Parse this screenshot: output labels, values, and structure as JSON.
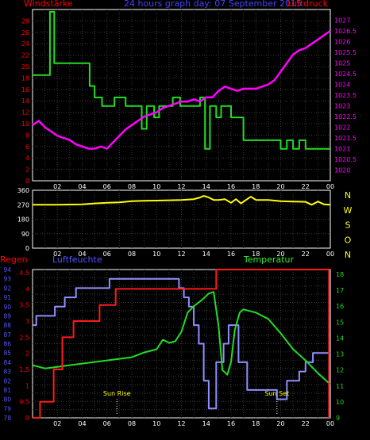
{
  "header": {
    "left": "Windstärke",
    "center": "24 hours graph day: 07 September 2015",
    "right": "Luftdruck"
  },
  "colors": {
    "background": "#000000",
    "frame": "#ffffff",
    "grid": "#3a3a3a",
    "wind": "#22dd22",
    "pressure": "#ff00ff",
    "direction": "#ffff00",
    "rain": "#ff1a1a",
    "humidity": "#8f8fff",
    "temperature": "#22dd22",
    "red_labels": "#ff0000",
    "blue_labels": "#5555ff",
    "yellow_labels": "#ffff00",
    "green_labels": "#33ee33",
    "axis_text": "#ffffff"
  },
  "x_ticks": [
    "02",
    "04",
    "06",
    "08",
    "10",
    "12",
    "14",
    "16",
    "18",
    "20",
    "22",
    "00"
  ],
  "chart_data": [
    {
      "type": "line",
      "title": "24 hours graph day: 07 September 2015",
      "xlim": [
        0,
        24
      ],
      "series": [
        {
          "name": "Windstärke",
          "axis": "left",
          "ylim": [
            0,
            30
          ],
          "yticks": [
            "0",
            "2",
            "4",
            "6",
            "8",
            "10",
            "12",
            "14",
            "16",
            "18",
            "20",
            "22",
            "24",
            "26",
            "28"
          ],
          "step": true,
          "x": [
            0,
            1.4,
            1.4,
            1.75,
            1.75,
            2.5,
            4.6,
            4.6,
            5.0,
            5.0,
            5.6,
            5.6,
            6.6,
            6.6,
            7.5,
            7.5,
            8.0,
            8.0,
            8.8,
            8.8,
            9.2,
            9.2,
            9.8,
            9.8,
            10.2,
            10.2,
            11.3,
            11.3,
            11.9,
            11.9,
            12.8,
            12.8,
            13.5,
            13.5,
            13.9,
            13.9,
            14.3,
            14.3,
            14.8,
            14.8,
            15.2,
            15.2,
            16.0,
            16.0,
            17.0,
            17.0,
            19.0,
            19.0,
            20.0,
            20.0,
            20.5,
            20.5,
            21.0,
            21.0,
            21.5,
            21.5,
            22.0,
            22.0,
            24.0
          ],
          "y": [
            18.5,
            18.5,
            29.6,
            29.6,
            20.6,
            20.6,
            20.6,
            16.6,
            16.6,
            14.6,
            14.6,
            13.1,
            13.1,
            14.6,
            14.6,
            13.1,
            13.1,
            13.1,
            13.1,
            9.1,
            9.1,
            13.1,
            13.1,
            11.1,
            11.1,
            13.1,
            13.1,
            14.6,
            14.6,
            13.1,
            13.1,
            13.1,
            13.1,
            14.6,
            14.6,
            5.6,
            5.6,
            13.1,
            13.1,
            11.1,
            11.1,
            13.1,
            13.1,
            11.1,
            11.1,
            7.1,
            7.1,
            7.1,
            7.1,
            5.6,
            5.6,
            7.1,
            7.1,
            5.6,
            5.6,
            7.1,
            7.1,
            5.6,
            5.6
          ]
        },
        {
          "name": "Luftdruck",
          "axis": "right",
          "ylim": [
            1019.5,
            1027.5
          ],
          "yticks": [
            "1020",
            "1020.5",
            "1021",
            "1021.5",
            "1022",
            "1022.5",
            "1023",
            "1023.5",
            "1024",
            "1024.5",
            "1025",
            "1025.5",
            "1026",
            "1026.5",
            "1027"
          ],
          "x": [
            0,
            0.5,
            1.0,
            1.5,
            2.0,
            2.5,
            3.0,
            3.5,
            4.0,
            4.5,
            5.0,
            5.5,
            6.0,
            6.5,
            7.0,
            7.5,
            8.0,
            8.5,
            9.0,
            9.5,
            10.0,
            10.5,
            11.0,
            11.5,
            12.0,
            12.5,
            13.0,
            13.5,
            14.0,
            14.5,
            15.0,
            15.5,
            16.0,
            16.5,
            17.0,
            17.5,
            18.0,
            18.5,
            19.0,
            19.5,
            20.0,
            20.5,
            21.0,
            21.5,
            22.0,
            22.5,
            23.0,
            23.5,
            24.0
          ],
          "y": [
            1022.1,
            1022.3,
            1022.0,
            1021.8,
            1021.6,
            1021.5,
            1021.4,
            1021.2,
            1021.1,
            1021.0,
            1021.0,
            1021.1,
            1021.0,
            1021.3,
            1021.6,
            1021.9,
            1022.1,
            1022.3,
            1022.5,
            1022.6,
            1022.7,
            1022.9,
            1023.0,
            1023.1,
            1023.2,
            1023.2,
            1023.3,
            1023.2,
            1023.4,
            1023.4,
            1023.7,
            1023.9,
            1023.8,
            1023.7,
            1023.8,
            1023.8,
            1023.8,
            1023.9,
            1024.0,
            1024.2,
            1024.6,
            1025.0,
            1025.4,
            1025.6,
            1025.7,
            1025.9,
            1026.1,
            1026.3,
            1026.5
          ]
        }
      ]
    },
    {
      "type": "line",
      "xlim": [
        0,
        24
      ],
      "ylim": [
        0,
        360
      ],
      "yticks": [
        "0",
        "90",
        "180",
        "270",
        "360"
      ],
      "direction_labels": [
        "N",
        "W",
        "S",
        "O",
        "N"
      ],
      "series": [
        {
          "name": "direction",
          "x": [
            0,
            2,
            4,
            5,
            6,
            7,
            8,
            9,
            10,
            11,
            12,
            13,
            13.5,
            13.8,
            14.2,
            14.6,
            15.0,
            15.5,
            16.0,
            16.4,
            16.8,
            17.2,
            17.6,
            18.0,
            19,
            20,
            21,
            22,
            22.5,
            23,
            23.5,
            24
          ],
          "y": [
            270,
            270,
            272,
            278,
            282,
            285,
            292,
            295,
            296,
            298,
            300,
            305,
            315,
            325,
            315,
            300,
            300,
            305,
            282,
            305,
            278,
            300,
            320,
            300,
            300,
            292,
            290,
            288,
            270,
            290,
            272,
            270
          ]
        }
      ]
    },
    {
      "type": "line",
      "xlim": [
        0,
        24
      ],
      "axis_titles": {
        "left_red": "Regen",
        "left_blue": "Luftfeuchte",
        "right_green": "Temperatur"
      },
      "annotations": [
        {
          "text": "Sun Rise",
          "x": 6.8
        },
        {
          "text": "Sun Set",
          "x": 19.7
        }
      ],
      "series": [
        {
          "name": "Regen",
          "axis": "rain",
          "ylim": [
            0,
            4.6
          ],
          "yticks": [
            "0",
            "0.5",
            "1",
            "1.5",
            "2",
            "2.5",
            "3",
            "3.5",
            "4",
            "4.5"
          ],
          "step": true,
          "x": [
            0,
            0.6,
            0.6,
            1.7,
            1.7,
            2.4,
            2.4,
            3.3,
            3.3,
            5.4,
            5.4,
            6.7,
            6.7,
            14.8,
            14.8,
            23.9,
            23.9
          ],
          "y": [
            0,
            0,
            0.5,
            0.5,
            1.5,
            1.5,
            2.5,
            2.5,
            3,
            3,
            3.5,
            3.5,
            4,
            4,
            4.6,
            4.6,
            0
          ]
        },
        {
          "name": "Luftfeuchte",
          "axis": "humidity",
          "ylim": [
            78,
            94
          ],
          "yticks": [
            "78",
            "79",
            "80",
            "81",
            "82",
            "83",
            "84",
            "85",
            "86",
            "87",
            "88",
            "89",
            "90",
            "91",
            "92",
            "93",
            "94"
          ],
          "step": true,
          "x": [
            0,
            0.3,
            0.3,
            1.8,
            1.8,
            2.6,
            2.6,
            3.5,
            3.5,
            4.5,
            4.5,
            6.2,
            6.2,
            7.0,
            7.0,
            11.8,
            11.8,
            12.2,
            12.2,
            12.6,
            12.6,
            13.0,
            13.0,
            13.4,
            13.4,
            13.8,
            13.8,
            14.2,
            14.2,
            14.8,
            14.8,
            15.4,
            15.4,
            15.8,
            15.8,
            16.6,
            16.6,
            17.3,
            17.3,
            18.0,
            18.0,
            19.7,
            19.7,
            20.5,
            20.5,
            21.5,
            21.5,
            22.0,
            22.0,
            22.6,
            22.6,
            24.0
          ],
          "y": [
            88,
            88,
            89,
            89,
            90,
            90,
            91,
            91,
            92,
            92,
            92,
            92,
            93,
            93,
            93,
            93,
            92,
            92,
            91,
            91,
            90,
            90,
            88,
            88,
            86,
            86,
            82,
            82,
            79,
            79,
            84,
            84,
            86,
            86,
            88,
            88,
            84,
            84,
            81,
            81,
            81,
            81,
            80,
            80,
            82,
            82,
            83,
            83,
            84,
            84,
            85,
            85
          ]
        },
        {
          "name": "Temperatur",
          "axis": "right",
          "ylim": [
            9,
            18.3
          ],
          "yticks": [
            "9",
            "10",
            "11",
            "12",
            "13",
            "14",
            "15",
            "16",
            "17",
            "18"
          ],
          "x": [
            0,
            1,
            2,
            3,
            4,
            5,
            6,
            7,
            8,
            9,
            10,
            10.5,
            11,
            11.5,
            12,
            12.5,
            13,
            13.5,
            13.8,
            14.2,
            14.6,
            15.0,
            15.3,
            15.7,
            16.0,
            16.3,
            16.7,
            17,
            18,
            19,
            20,
            21,
            22,
            23,
            24
          ],
          "y": [
            12.3,
            12.1,
            12.2,
            12.3,
            12.4,
            12.5,
            12.6,
            12.7,
            12.8,
            13.1,
            13.3,
            13.9,
            13.7,
            13.8,
            14.4,
            15.6,
            16.0,
            16.3,
            16.5,
            16.8,
            16.9,
            14.7,
            12.0,
            11.7,
            12.5,
            14.5,
            15.6,
            15.8,
            15.6,
            15.2,
            14.3,
            13.3,
            12.6,
            11.8,
            11.1
          ]
        }
      ]
    }
  ]
}
